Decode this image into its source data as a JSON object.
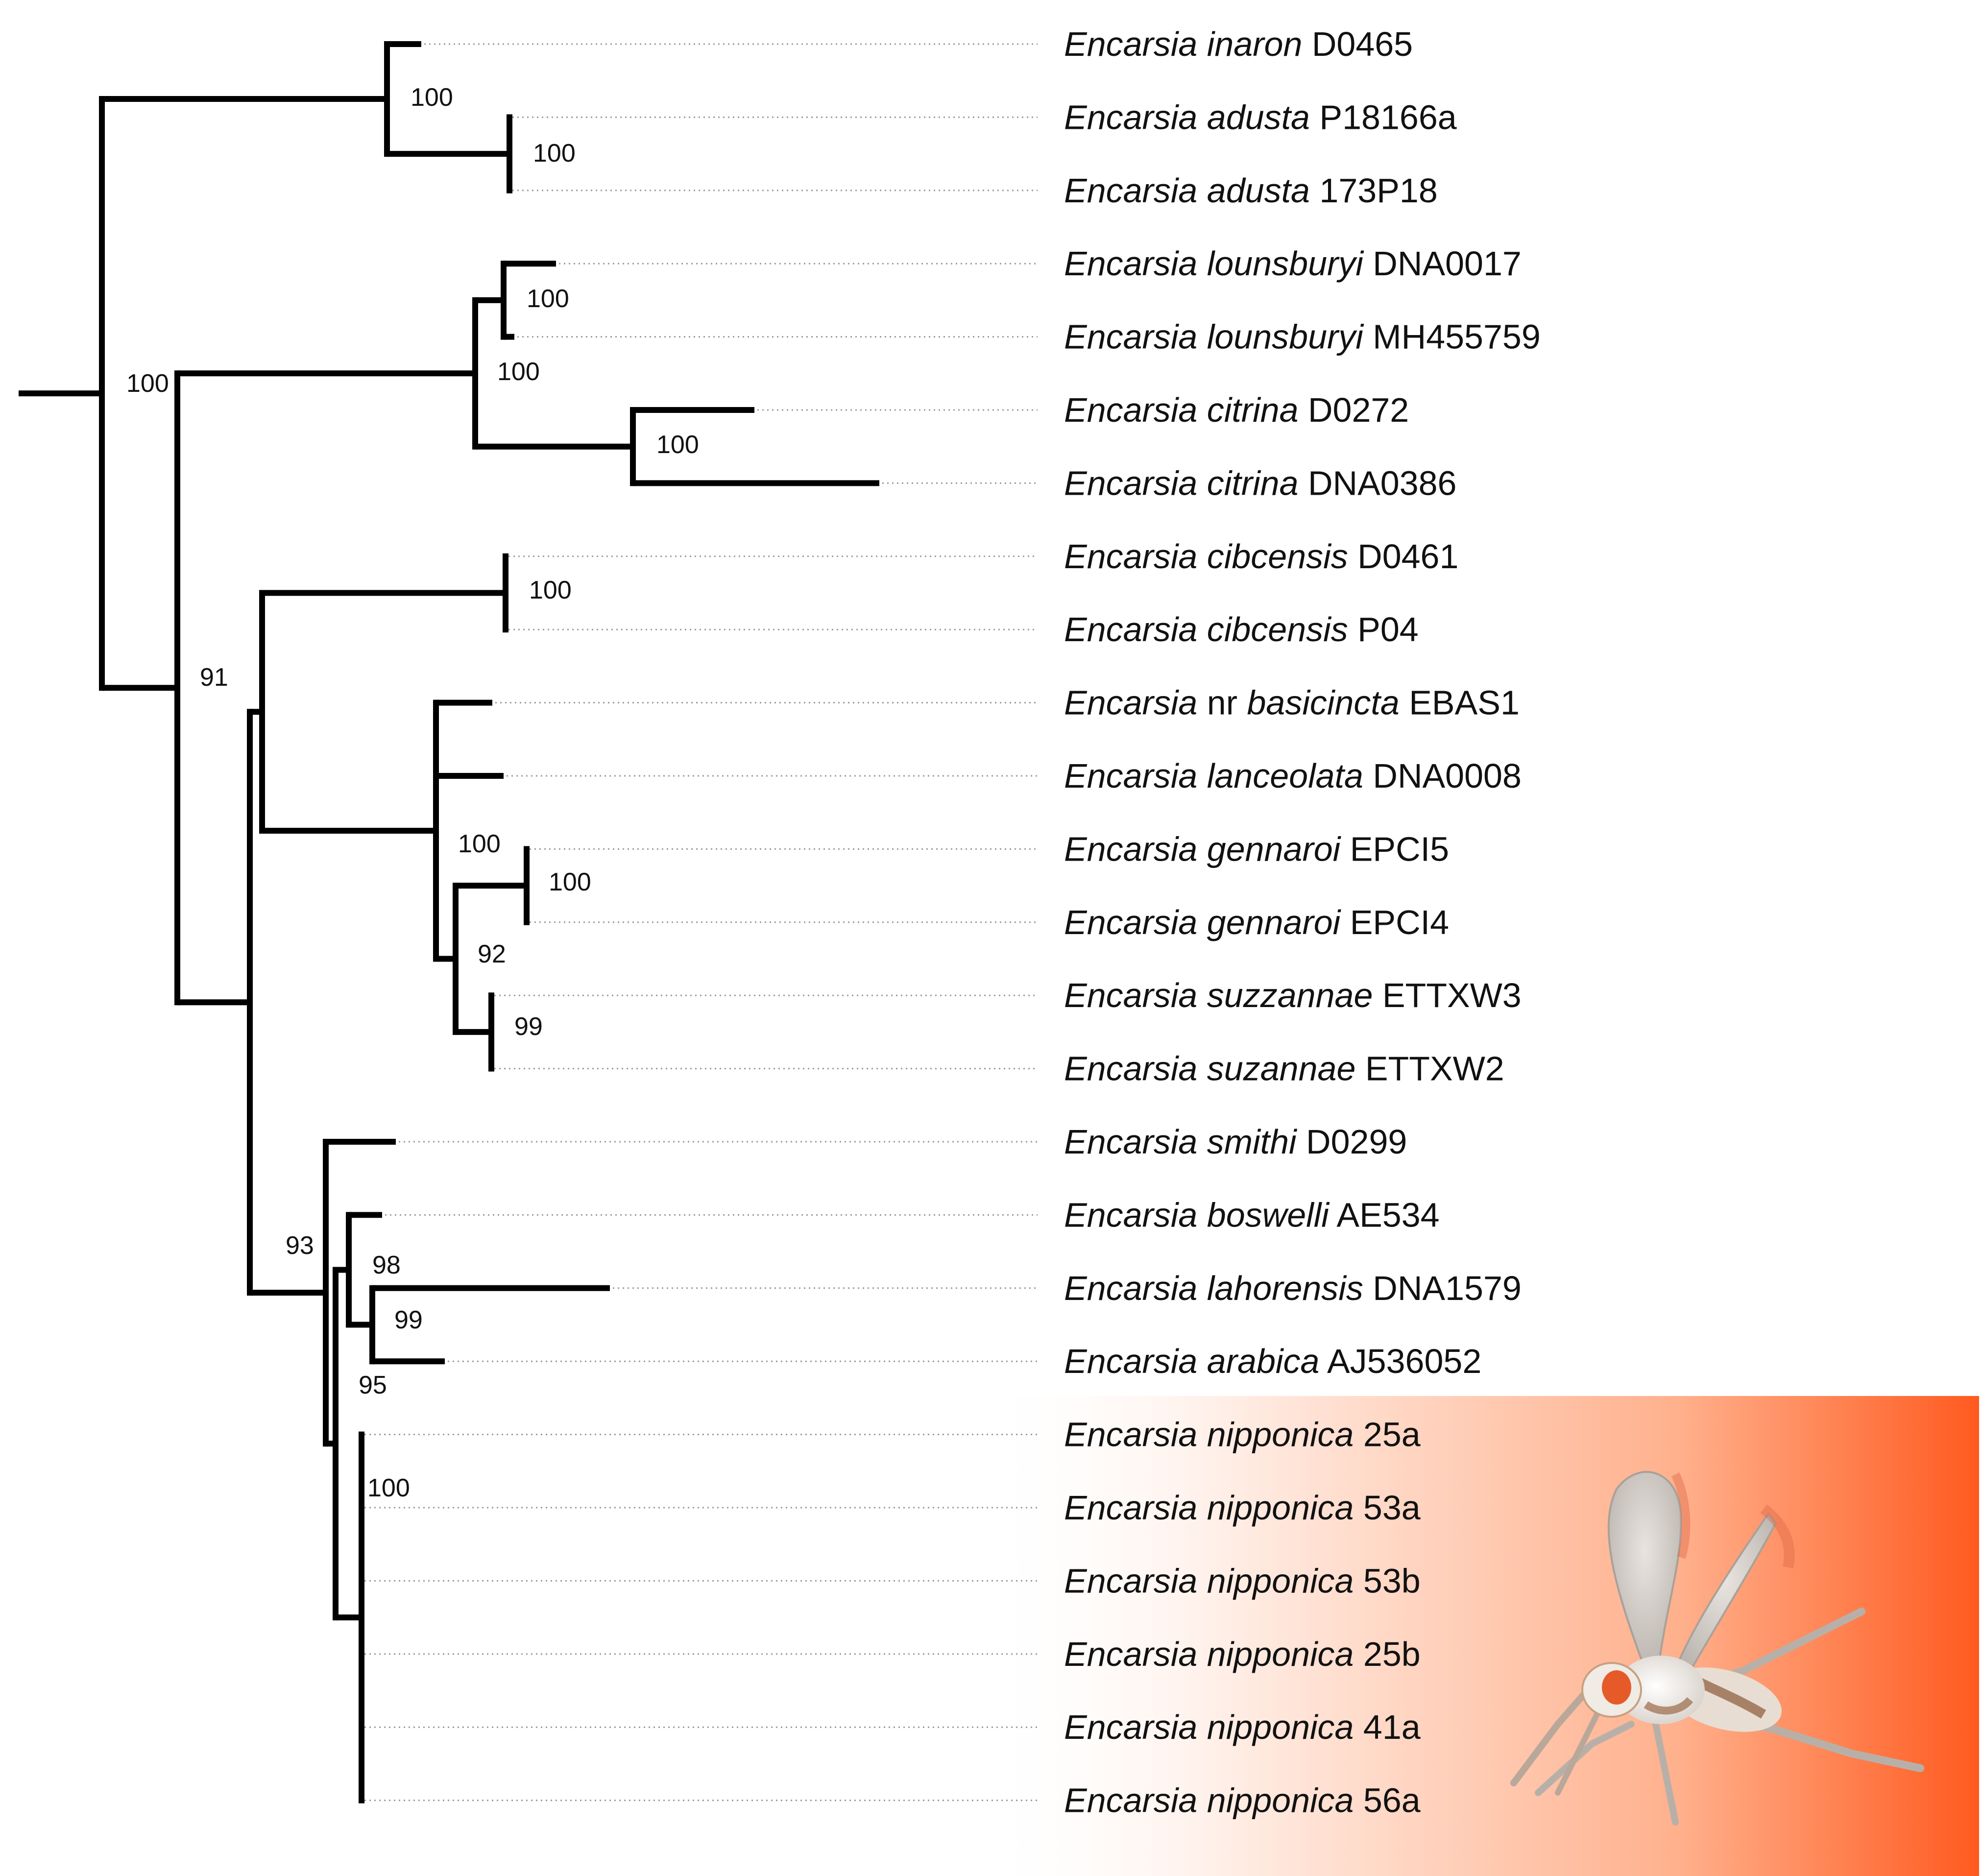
{
  "tree": {
    "taxa": [
      {
        "genus": "Encarsia",
        "qualifier": "",
        "epithet": "inaron",
        "code": "D0465"
      },
      {
        "genus": "Encarsia",
        "qualifier": "",
        "epithet": "adusta",
        "code": "P18166a"
      },
      {
        "genus": "Encarsia",
        "qualifier": "",
        "epithet": "adusta",
        "code": "173P18"
      },
      {
        "genus": "Encarsia",
        "qualifier": "",
        "epithet": "lounsburyi",
        "code": "DNA0017"
      },
      {
        "genus": "Encarsia",
        "qualifier": "",
        "epithet": "lounsburyi",
        "code": "MH455759"
      },
      {
        "genus": "Encarsia",
        "qualifier": "",
        "epithet": "citrina",
        "code": "D0272"
      },
      {
        "genus": "Encarsia",
        "qualifier": "",
        "epithet": "citrina",
        "code": "DNA0386"
      },
      {
        "genus": "Encarsia",
        "qualifier": "",
        "epithet": "cibcensis",
        "code": "D0461"
      },
      {
        "genus": "Encarsia",
        "qualifier": "",
        "epithet": "cibcensis",
        "code": "P04"
      },
      {
        "genus": "Encarsia",
        "qualifier": "nr",
        "epithet": "basicincta",
        "code": "EBAS1"
      },
      {
        "genus": "Encarsia",
        "qualifier": "",
        "epithet": "lanceolata",
        "code": "DNA0008"
      },
      {
        "genus": "Encarsia",
        "qualifier": "",
        "epithet": "gennaroi",
        "code": "EPCI5"
      },
      {
        "genus": "Encarsia",
        "qualifier": "",
        "epithet": "gennaroi",
        "code": "EPCI4"
      },
      {
        "genus": "Encarsia",
        "qualifier": "",
        "epithet": "suzzannae",
        "code": "ETTXW3"
      },
      {
        "genus": "Encarsia",
        "qualifier": "",
        "epithet": "suzannae",
        "code": "ETTXW2"
      },
      {
        "genus": "Encarsia",
        "qualifier": "",
        "epithet": "smithi",
        "code": "D0299"
      },
      {
        "genus": "Encarsia",
        "qualifier": "",
        "epithet": "boswelli",
        "code": "AE534"
      },
      {
        "genus": "Encarsia",
        "qualifier": "",
        "epithet": "lahorensis",
        "code": "DNA1579"
      },
      {
        "genus": "Encarsia",
        "qualifier": "",
        "epithet": "arabica",
        "code": "AJ536052"
      },
      {
        "genus": "Encarsia",
        "qualifier": "",
        "epithet": "nipponica",
        "code": "25a"
      },
      {
        "genus": "Encarsia",
        "qualifier": "",
        "epithet": "nipponica",
        "code": "53a"
      },
      {
        "genus": "Encarsia",
        "qualifier": "",
        "epithet": "nipponica",
        "code": "53b"
      },
      {
        "genus": "Encarsia",
        "qualifier": "",
        "epithet": "nipponica",
        "code": "25b"
      },
      {
        "genus": "Encarsia",
        "qualifier": "",
        "epithet": "nipponica",
        "code": "41a"
      },
      {
        "genus": "Encarsia",
        "qualifier": "",
        "epithet": "nipponica",
        "code": "56a"
      }
    ],
    "support_values": [
      {
        "id": "inaron-adusta",
        "value": "100"
      },
      {
        "id": "adusta",
        "value": "100"
      },
      {
        "id": "lounsburyi",
        "value": "100"
      },
      {
        "id": "lounsburyi-citrina",
        "value": "100"
      },
      {
        "id": "citrina",
        "value": "100"
      },
      {
        "id": "clade-a",
        "value": "100"
      },
      {
        "id": "cibcensis",
        "value": "100"
      },
      {
        "id": "clade-b",
        "value": "91"
      },
      {
        "id": "basicincta-group",
        "value": "100"
      },
      {
        "id": "gennaroi",
        "value": "100"
      },
      {
        "id": "gennaroi-suzannae",
        "value": "92"
      },
      {
        "id": "suzannae",
        "value": "99"
      },
      {
        "id": "smithi-group",
        "value": "93"
      },
      {
        "id": "boswelli-group",
        "value": "98"
      },
      {
        "id": "lahorensis-arabica",
        "value": "99"
      },
      {
        "id": "boswelli-nipponica",
        "value": "95"
      },
      {
        "id": "nipponica",
        "value": "100"
      }
    ],
    "highlight": {
      "clade": "nipponica",
      "colors": {
        "start": "#ffffff",
        "end": "#ff5a1f"
      },
      "specimen_image": "Encarsia nipponica wasp illustration"
    }
  }
}
